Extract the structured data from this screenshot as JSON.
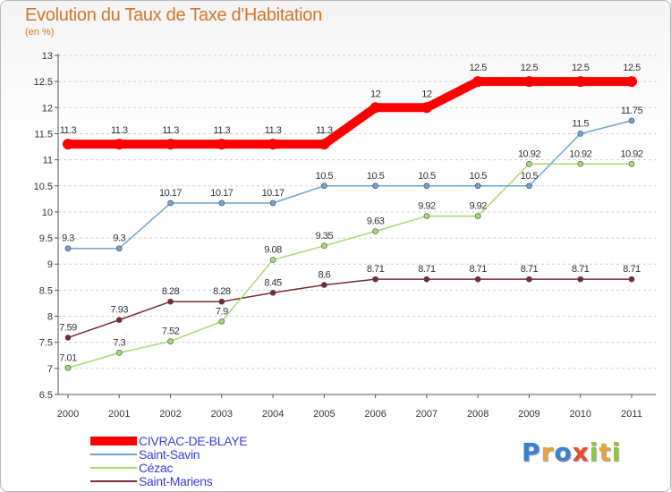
{
  "title": "Evolution du Taux de Taxe d'Habitation",
  "subtitle": "(en %)",
  "logo": {
    "letters": [
      {
        "ch": "P",
        "color": "#3b7fd0"
      },
      {
        "ch": "r",
        "color": "#e8a33c"
      },
      {
        "ch": "o",
        "color": "#3b7fd0"
      },
      {
        "ch": "x",
        "color": "#e54b2c"
      },
      {
        "ch": "i",
        "color": "#8ec63f"
      },
      {
        "ch": "t",
        "color": "#e8a33c"
      },
      {
        "ch": "i",
        "color": "#8ec63f"
      }
    ]
  },
  "chart_data": {
    "type": "line",
    "title": "Evolution du Taux de Taxe d'Habitation",
    "ylabel": "(en %)",
    "x": [
      "2000",
      "2001",
      "2002",
      "2003",
      "2004",
      "2005",
      "2006",
      "2007",
      "2008",
      "2009",
      "2010",
      "2011"
    ],
    "ylim": [
      6.5,
      13
    ],
    "yticks": [
      "6.5",
      "7",
      "7.5",
      "8",
      "8.5",
      "9",
      "9.5",
      "10",
      "10.5",
      "11",
      "11.5",
      "12",
      "12.5",
      "13"
    ],
    "grid": "horizontal-dashed",
    "legend": "bottom-left",
    "series": [
      {
        "name": "CIVRAC-DE-BLAYE",
        "color": "#ff0000",
        "emphasis": true,
        "values": [
          11.3,
          11.3,
          11.3,
          11.3,
          11.3,
          11.3,
          12,
          12,
          12.5,
          12.5,
          12.5,
          12.5
        ],
        "labels": [
          "11.3",
          "11.3",
          "11.3",
          "11.3",
          "11.3",
          "11.3",
          "12",
          "12",
          "12.5",
          "12.5",
          "12.5",
          "12.5"
        ]
      },
      {
        "name": "Saint-Savin",
        "color": "#6fa6d6",
        "emphasis": false,
        "values": [
          9.3,
          9.3,
          10.17,
          10.17,
          10.17,
          10.5,
          10.5,
          10.5,
          10.5,
          10.5,
          11.5,
          11.75
        ],
        "labels": [
          "9.3",
          "9.3",
          "10.17",
          "10.17",
          "10.17",
          "10.5",
          "10.5",
          "10.5",
          "10.5",
          "10.5",
          "11.5",
          "11.75"
        ]
      },
      {
        "name": "Cézac",
        "color": "#a3dc73",
        "emphasis": false,
        "values": [
          7.01,
          7.3,
          7.52,
          7.9,
          9.08,
          9.35,
          9.63,
          9.92,
          9.92,
          10.92,
          10.92,
          10.92
        ],
        "labels": [
          "7.01",
          "7.3",
          "7.52",
          "7.9",
          "9.08",
          "9.35",
          "9.63",
          "9.92",
          "9.92",
          "10.92",
          "10.92",
          "10.92"
        ]
      },
      {
        "name": "Saint-Mariens",
        "color": "#7a2a35",
        "emphasis": false,
        "values": [
          7.59,
          7.93,
          8.28,
          8.28,
          8.45,
          8.6,
          8.71,
          8.71,
          8.71,
          8.71,
          8.71,
          8.71
        ],
        "labels": [
          "7.59",
          "7.93",
          "8.28",
          "8.28",
          "8.45",
          "8.6",
          "8.71",
          "8.71",
          "8.71",
          "8.71",
          "8.71",
          "8.71"
        ]
      }
    ]
  }
}
